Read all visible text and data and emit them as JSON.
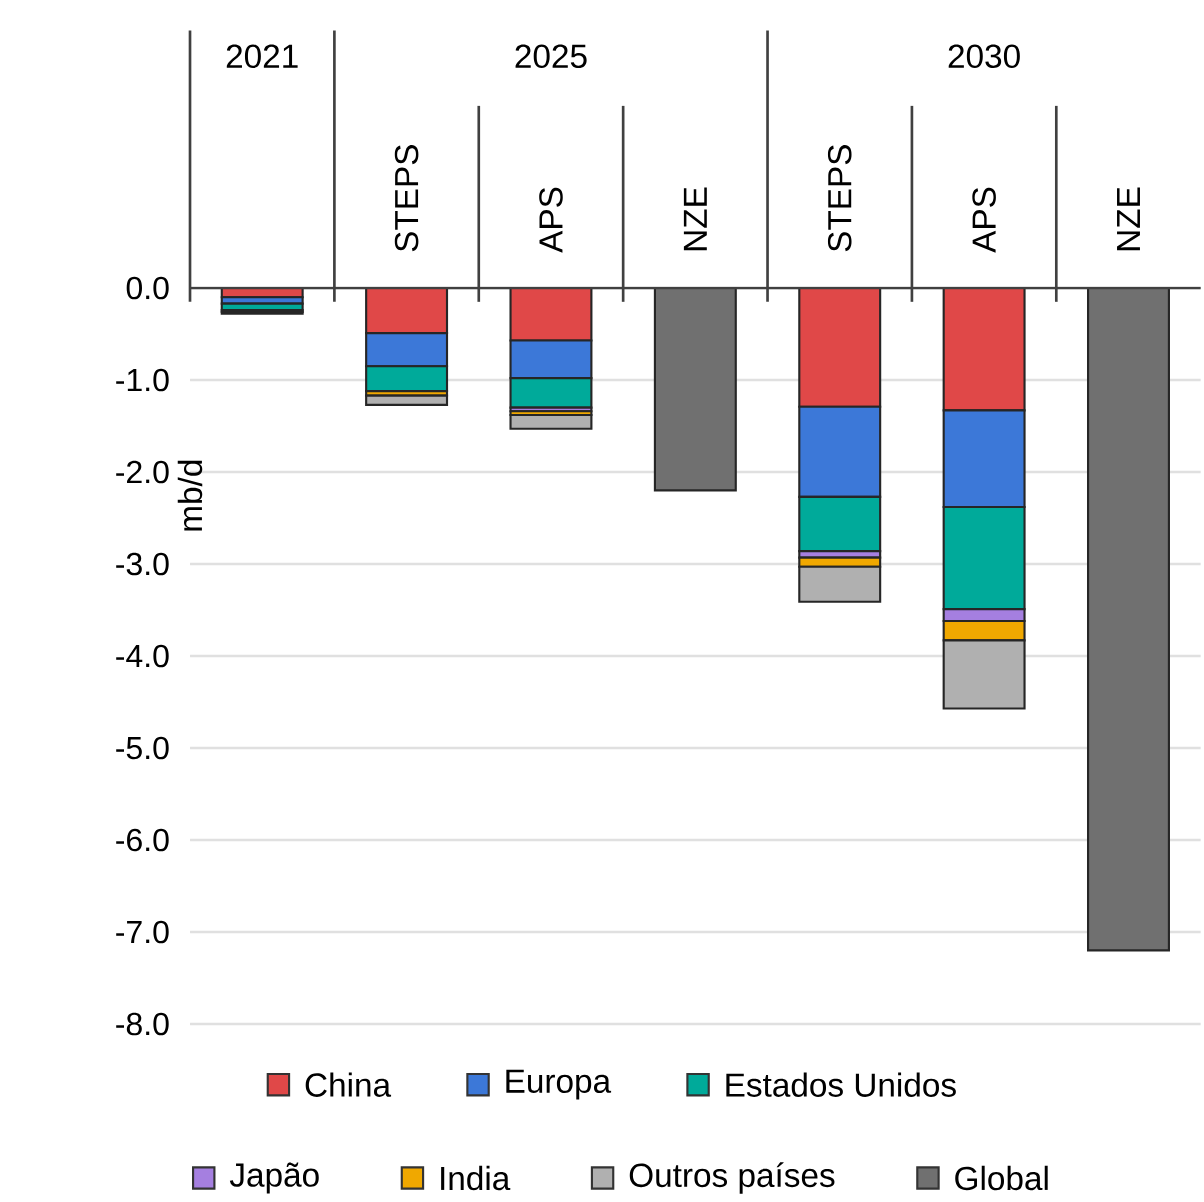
{
  "chart_data": {
    "type": "bar",
    "stacked": true,
    "ylabel": "mb/d",
    "categories": [
      null,
      "STEPS",
      "APS",
      "NZE",
      "STEPS",
      "APS",
      "NZE"
    ],
    "annotations": [
      "2021",
      "2025",
      "2030"
    ],
    "series": [
      {
        "name": "China",
        "color": "#e04848",
        "values": [
          -0.1,
          -0.49,
          -0.57,
          null,
          -1.29,
          -1.33,
          null
        ]
      },
      {
        "name": "Europa",
        "color": "#3c78d8",
        "values": [
          -0.07,
          -0.36,
          -0.41,
          null,
          -0.98,
          -1.05,
          null
        ]
      },
      {
        "name": "Estados Unidos",
        "color": "#00aa9a",
        "values": [
          -0.07,
          -0.27,
          -0.32,
          null,
          -0.59,
          -1.11,
          null
        ]
      },
      {
        "name": "Japão",
        "color": "#a57fe0",
        "values": [
          null,
          null,
          -0.04,
          null,
          -0.07,
          -0.13,
          null
        ]
      },
      {
        "name": "India",
        "color": "#f0a800",
        "values": [
          -0.02,
          -0.05,
          -0.04,
          null,
          -0.1,
          -0.21,
          null
        ]
      },
      {
        "name": "Outros países",
        "color": "#b0b0b0",
        "values": [
          -0.02,
          -0.1,
          -0.15,
          null,
          -0.38,
          -0.74,
          null
        ]
      },
      {
        "name": "Global",
        "color": "#707070",
        "values": [
          null,
          null,
          null,
          -2.2,
          null,
          null,
          -7.2
        ]
      }
    ],
    "ylim": [
      -8,
      0
    ],
    "yticks": [
      {
        "value": 0,
        "label": "0.0"
      },
      {
        "value": -1,
        "label": "-1.0"
      },
      {
        "value": -2,
        "label": "-2.0"
      },
      {
        "value": -3,
        "label": "-3.0"
      },
      {
        "value": -4,
        "label": "-4.0"
      },
      {
        "value": -5,
        "label": "-5.0"
      },
      {
        "value": -6,
        "label": "-6.0"
      },
      {
        "value": -7,
        "label": "-7.0"
      },
      {
        "value": -8,
        "label": "-8.0"
      }
    ],
    "grid": "y",
    "legend": "bottom"
  }
}
